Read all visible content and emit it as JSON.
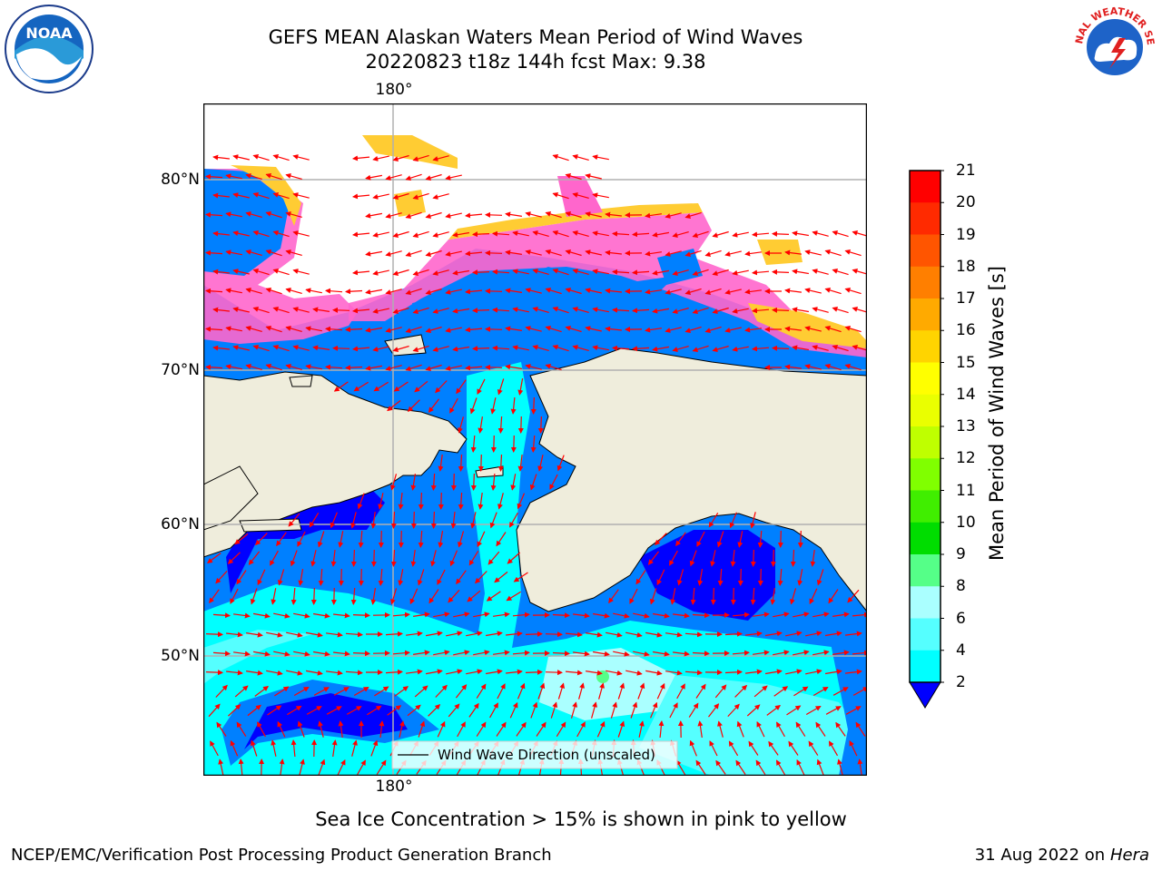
{
  "title": {
    "line1": "GEFS MEAN Alaskan Waters Mean Period of Wind Waves",
    "line2": "20220823 t18z 144h fcst   Max: 9.38"
  },
  "axes": {
    "lon_top": "180°",
    "lon_bottom": "180°",
    "lat_labels": [
      "80°N",
      "70°N",
      "60°N",
      "50°N"
    ]
  },
  "legend": {
    "label": "Wind Wave Direction (unscaled)"
  },
  "colorbar": {
    "title": "Mean Period of Wind Waves [s]",
    "ticks": [
      "21",
      "20",
      "19",
      "18",
      "17",
      "16",
      "15",
      "14",
      "13",
      "12",
      "11",
      "10",
      "9",
      "8",
      "6",
      "4",
      "2"
    ],
    "colors": [
      "#ff0000",
      "#ff2a00",
      "#ff5500",
      "#ff7f00",
      "#ffaa00",
      "#ffd400",
      "#ffff00",
      "#eaff00",
      "#bfff00",
      "#80ff00",
      "#40ee00",
      "#00dd00",
      "#55ff88",
      "#aaffff",
      "#55ffff",
      "#00ffff",
      "#0080ff",
      "#0000ff"
    ]
  },
  "colors": {
    "land": "#efeddc",
    "ice_pink": "#ff66cc",
    "ice_yellow": "#ffcc33",
    "dark_blue": "#0000ff",
    "mid_blue": "#0080ff",
    "cyan": "#00ffff",
    "light_cyan": "#aaffff",
    "arrow": "#ff0000"
  },
  "logos": {
    "left": "NOAA",
    "right": "NATIONAL WEATHER SERVICE"
  },
  "footer": {
    "seaice_note": "Sea Ice Concentration > 15% is shown in pink to yellow",
    "left": "NCEP/EMC/Verification Post Processing Product Generation Branch",
    "right_prefix": "31 Aug 2022 on",
    "right_host": "Hera"
  }
}
